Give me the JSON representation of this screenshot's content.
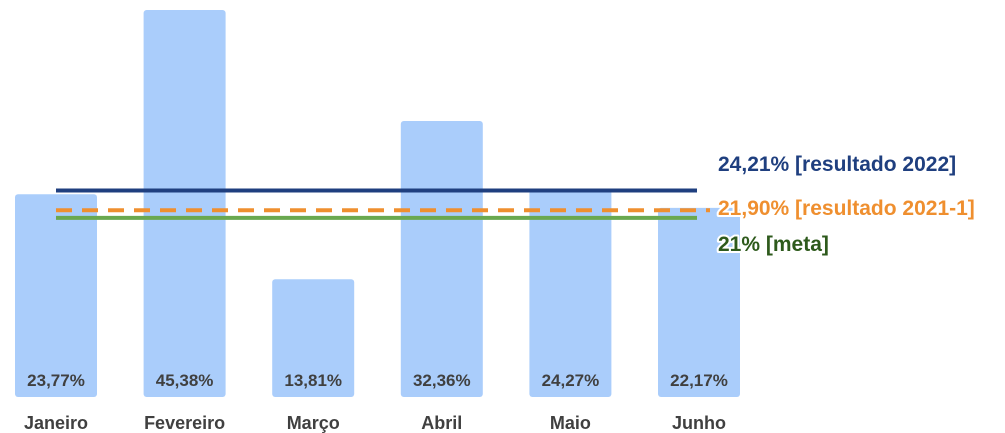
{
  "chart_data": {
    "type": "bar",
    "categories": [
      "Janeiro",
      "Fevereiro",
      "Março",
      "Abril",
      "Maio",
      "Junho"
    ],
    "values": [
      23.77,
      45.38,
      13.81,
      32.36,
      24.27,
      22.17
    ],
    "value_labels": [
      "23,77%",
      "45,38%",
      "13,81%",
      "32,36%",
      "24,27%",
      "22,17%"
    ],
    "title": "",
    "xlabel": "",
    "ylabel": "",
    "ylim": [
      0,
      45.38
    ],
    "grid": false,
    "legend": "none",
    "bar_color": "#aacdfb",
    "reference_lines": [
      {
        "label": "24,21% [resultado 2022]",
        "value": 24.21,
        "style": "solid",
        "color": "#1f3f7f"
      },
      {
        "label": "21,90% [resultado 2021-1]",
        "value": 21.9,
        "style": "dashed",
        "color": "#ef8f2f"
      },
      {
        "label": "21% [meta]",
        "value": 21.0,
        "style": "solid",
        "color": "#6aa84f",
        "label_color": "#2e5a1c"
      }
    ]
  }
}
